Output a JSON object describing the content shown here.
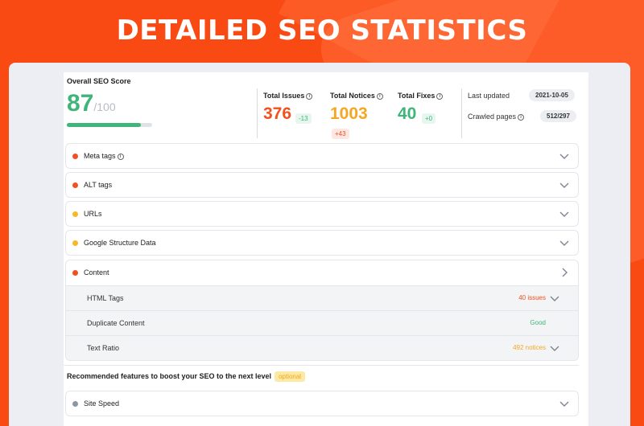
{
  "banner": {
    "title": "DETAILED SEO STATISTICS"
  },
  "score": {
    "label": "Overall SEO Score",
    "value": "87",
    "max": "/100",
    "progress": 0.87
  },
  "stats": [
    {
      "label": "Total Issues",
      "value": "376",
      "delta": "-13",
      "color": "#f2501e",
      "delta_bg": "#e7f6ee",
      "delta_color": "#3fb57a"
    },
    {
      "label": "Total Notices",
      "value": "1003",
      "delta": "+43",
      "color": "#f7a623",
      "delta_bg": "#fde7e2",
      "delta_color": "#f2501e"
    },
    {
      "label": "Total Fixes",
      "value": "40",
      "delta": "+0",
      "color": "#3fb57a",
      "delta_bg": "#e7f6ee",
      "delta_color": "#3fb57a"
    }
  ],
  "meta": {
    "last_updated_label": "Last updated",
    "last_updated_value": "2021-10-05",
    "crawled_label": "Crawled pages",
    "crawled_value": "512/297"
  },
  "rows": [
    {
      "label": "Meta tags",
      "dot_color": "#f2501e",
      "has_info": true
    },
    {
      "label": "ALT tags",
      "dot_color": "#f2501e",
      "has_info": false
    },
    {
      "label": "URLs",
      "dot_color": "#f7b825",
      "has_info": false
    },
    {
      "label": "Google Structure Data",
      "dot_color": "#f7b825",
      "has_info": false
    }
  ],
  "content": {
    "label": "Content",
    "dot_color": "#f2501e",
    "sub_rows": [
      {
        "label": "HTML Tags",
        "status": "40 issues",
        "status_color": "#f2501e",
        "has_chevron": true
      },
      {
        "label": "Duplicate Content",
        "status": "Good",
        "status_color": "#3fb57a",
        "has_chevron": false
      },
      {
        "label": "Text Ratio",
        "status": "492 notices",
        "status_color": "#f7a623",
        "has_chevron": true
      }
    ]
  },
  "recommended": {
    "label": "Recommended features to boost your SEO to the next level",
    "optional": "optional"
  },
  "site_speed": {
    "label": "Site Speed",
    "dot_color": "#8c96a3"
  },
  "icons": {
    "info": "info-icon",
    "chevron_down": "chevron-down-icon",
    "chevron_right": "chevron-right-icon"
  }
}
